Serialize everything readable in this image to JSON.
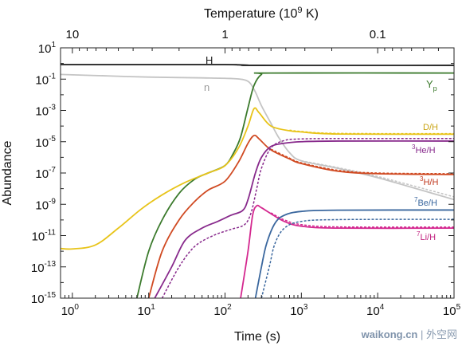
{
  "chart_data": {
    "type": "line",
    "xlabel": "Time (s)",
    "ylabel": "Abundance",
    "top_axis_title": "Temperature  (10",
    "top_axis_title_exp": "9",
    "top_axis_title_end": " K)",
    "xscale": "log",
    "yscale": "log",
    "xlim": [
      0.7,
      100000
    ],
    "ylim": [
      1e-15,
      10
    ],
    "x_ticks": [
      {
        "value": 1,
        "base": "10",
        "exp": "0"
      },
      {
        "value": 10,
        "base": "10",
        "exp": "1"
      },
      {
        "value": 100,
        "base": "10",
        "exp": "2"
      },
      {
        "value": 1000,
        "base": "10",
        "exp": "3"
      },
      {
        "value": 10000,
        "base": "10",
        "exp": "4"
      },
      {
        "value": 100000,
        "base": "10",
        "exp": "5"
      }
    ],
    "y_ticks": [
      {
        "value": 10,
        "base": "10",
        "exp": "1"
      },
      {
        "value": 0.1,
        "base": "10",
        "exp": "-1"
      },
      {
        "value": 0.001,
        "base": "10",
        "exp": "-3"
      },
      {
        "value": 1e-05,
        "base": "10",
        "exp": "-5"
      },
      {
        "value": 1e-07,
        "base": "10",
        "exp": "-7"
      },
      {
        "value": 1e-09,
        "base": "10",
        "exp": "-9"
      },
      {
        "value": 1e-11,
        "base": "10",
        "exp": "-11"
      },
      {
        "value": 1e-13,
        "base": "10",
        "exp": "-13"
      },
      {
        "value": 1e-15,
        "base": "10",
        "exp": "-15"
      }
    ],
    "top_ticks": [
      {
        "label": "10",
        "time": 1
      },
      {
        "label": "1",
        "time": 100
      },
      {
        "label": "0.1",
        "time": 10000
      }
    ],
    "series": [
      {
        "name": "H",
        "color": "#1a1a1a",
        "dashed": false,
        "points": [
          [
            0.7,
            0.85
          ],
          [
            10,
            0.85
          ],
          [
            100,
            0.85
          ],
          [
            150,
            0.82
          ],
          [
            200,
            0.78
          ],
          [
            280,
            0.76
          ],
          [
            100000,
            0.76
          ]
        ]
      },
      {
        "name": "n",
        "color": "#c4c4c4",
        "dashed": false,
        "points": [
          [
            0.7,
            0.2
          ],
          [
            3,
            0.16
          ],
          [
            10,
            0.135
          ],
          [
            50,
            0.12
          ],
          [
            120,
            0.11
          ],
          [
            170,
            0.095
          ],
          [
            210,
            0.06
          ],
          [
            250,
            0.015
          ],
          [
            300,
            0.002
          ],
          [
            400,
            0.00015
          ],
          [
            500,
            2e-05
          ],
          [
            700,
            2e-06
          ],
          [
            1000,
            6e-07
          ],
          [
            3000,
            2e-07
          ],
          [
            10000,
            5e-08
          ],
          [
            100000,
            2e-09
          ]
        ]
      },
      {
        "name": "n (alt)",
        "color": "#c4c4c4",
        "dashed": true,
        "points": [
          [
            1000,
            6e-07
          ],
          [
            3000,
            2.2e-07
          ],
          [
            10000,
            6e-08
          ],
          [
            100000,
            3e-09
          ]
        ]
      },
      {
        "name": "Yp",
        "color": "#3b7a2c",
        "dashed": false,
        "points": [
          [
            7,
            1e-15
          ],
          [
            10,
            1e-12
          ],
          [
            15,
            1e-10
          ],
          [
            25,
            5e-09
          ],
          [
            40,
            4e-08
          ],
          [
            60,
            1e-07
          ],
          [
            100,
            3e-07
          ],
          [
            130,
            2e-06
          ],
          [
            160,
            2e-05
          ],
          [
            200,
            0.0015
          ],
          [
            240,
            0.04
          ],
          [
            300,
            0.2
          ],
          [
            400,
            0.245
          ],
          [
            100000,
            0.245
          ]
        ]
      },
      {
        "name": "D/H",
        "color": "#e8c41a",
        "dashed": false,
        "points": [
          [
            0.7,
            1.5e-12
          ],
          [
            1,
            1.4e-12
          ],
          [
            2,
            2.5e-12
          ],
          [
            4,
            3e-11
          ],
          [
            8,
            5e-10
          ],
          [
            15,
            4e-09
          ],
          [
            30,
            2.5e-08
          ],
          [
            60,
            1e-07
          ],
          [
            100,
            3e-07
          ],
          [
            150,
            4e-06
          ],
          [
            200,
            0.0001
          ],
          [
            240,
            0.0013
          ],
          [
            280,
            0.0007
          ],
          [
            400,
            0.0001
          ],
          [
            700,
            5e-05
          ],
          [
            1000,
            4.2e-05
          ],
          [
            3000,
            3.1e-05
          ],
          [
            100000,
            3e-05
          ]
        ]
      },
      {
        "name": "D/H (alt)",
        "color": "#e8c41a",
        "dashed": true,
        "points": [
          [
            700,
            5.5e-05
          ],
          [
            1000,
            4.5e-05
          ],
          [
            3000,
            3.4e-05
          ],
          [
            100000,
            3.3e-05
          ]
        ]
      },
      {
        "name": "3H/H",
        "color": "#d04a22",
        "dashed": false,
        "points": [
          [
            10,
            1e-15
          ],
          [
            15,
            1e-12
          ],
          [
            25,
            1e-10
          ],
          [
            40,
            1.5e-09
          ],
          [
            60,
            8e-09
          ],
          [
            100,
            3e-08
          ],
          [
            150,
            5e-07
          ],
          [
            200,
            8e-06
          ],
          [
            240,
            2.5e-05
          ],
          [
            280,
            1.5e-05
          ],
          [
            400,
            3e-06
          ],
          [
            700,
            8e-07
          ],
          [
            1000,
            4e-07
          ],
          [
            3000,
            1.3e-07
          ],
          [
            10000,
            9e-08
          ],
          [
            100000,
            8e-08
          ]
        ]
      },
      {
        "name": "3H/H (alt)",
        "color": "#d04a22",
        "dashed": true,
        "points": [
          [
            400,
            3.3e-06
          ],
          [
            700,
            9e-07
          ],
          [
            1000,
            4.5e-07
          ],
          [
            3000,
            1.5e-07
          ],
          [
            10000,
            1e-07
          ],
          [
            100000,
            9e-08
          ]
        ]
      },
      {
        "name": "3He/H",
        "color": "#882a8c",
        "dashed": false,
        "points": [
          [
            12,
            1e-15
          ],
          [
            20,
            1e-13
          ],
          [
            30,
            5e-12
          ],
          [
            50,
            3e-11
          ],
          [
            80,
            8e-11
          ],
          [
            120,
            2e-10
          ],
          [
            170,
            4e-10
          ],
          [
            200,
            2e-09
          ],
          [
            250,
            1e-07
          ],
          [
            300,
            1e-06
          ],
          [
            400,
            5e-06
          ],
          [
            600,
            8e-06
          ],
          [
            1000,
            1e-05
          ],
          [
            3000,
            1.1e-05
          ],
          [
            100000,
            1.1e-05
          ]
        ]
      },
      {
        "name": "3He/H (alt)",
        "color": "#882a8c",
        "dashed": true,
        "points": [
          [
            15,
            1e-15
          ],
          [
            25,
            1e-13
          ],
          [
            40,
            2e-12
          ],
          [
            70,
            1e-11
          ],
          [
            120,
            2.5e-11
          ],
          [
            180,
            5e-11
          ],
          [
            220,
            3e-10
          ],
          [
            260,
            1e-08
          ],
          [
            300,
            2e-07
          ],
          [
            400,
            4e-06
          ],
          [
            600,
            1.2e-05
          ],
          [
            1000,
            1.5e-05
          ],
          [
            3000,
            1.6e-05
          ],
          [
            100000,
            1.6e-05
          ]
        ]
      },
      {
        "name": "7Li/H",
        "color": "#d4288f",
        "dashed": false,
        "points": [
          [
            160,
            1e-15
          ],
          [
            200,
            1e-12
          ],
          [
            230,
            2e-10
          ],
          [
            260,
            8e-10
          ],
          [
            300,
            6e-10
          ],
          [
            400,
            2.5e-10
          ],
          [
            600,
            8e-11
          ],
          [
            1000,
            4e-11
          ],
          [
            3000,
            3e-11
          ],
          [
            100000,
            3e-11
          ]
        ]
      },
      {
        "name": "7Li/H (alt)",
        "color": "#d4288f",
        "dashed": true,
        "points": [
          [
            400,
            2.8e-10
          ],
          [
            600,
            1e-10
          ],
          [
            1000,
            5e-11
          ],
          [
            3000,
            3.6e-11
          ],
          [
            100000,
            3.5e-11
          ]
        ]
      },
      {
        "name": "7Be/H",
        "color": "#3a679e",
        "dashed": false,
        "points": [
          [
            250,
            1e-15
          ],
          [
            300,
            1e-13
          ],
          [
            350,
            3e-12
          ],
          [
            450,
            6e-11
          ],
          [
            600,
            2e-10
          ],
          [
            1000,
            3.5e-10
          ],
          [
            3000,
            4.2e-10
          ],
          [
            100000,
            4.3e-10
          ]
        ]
      },
      {
        "name": "7Be/H (alt)",
        "color": "#3a679e",
        "dashed": true,
        "points": [
          [
            300,
            1e-15
          ],
          [
            380,
            1e-13
          ],
          [
            450,
            3e-12
          ],
          [
            600,
            3e-11
          ],
          [
            1000,
            8e-11
          ],
          [
            3000,
            1.05e-10
          ],
          [
            100000,
            1.1e-10
          ]
        ]
      }
    ],
    "labels": [
      {
        "key": "H",
        "text": "H",
        "color": "#1a1a1a"
      },
      {
        "key": "n",
        "text": "n",
        "color": "#9a9a9a"
      },
      {
        "key": "Yp",
        "base": "Y",
        "sub": "p",
        "color": "#3b7a2c"
      },
      {
        "key": "DH",
        "text": "D/H",
        "color": "#c9a414"
      },
      {
        "key": "He3",
        "sup": "3",
        "base": "He/H",
        "color": "#882a8c"
      },
      {
        "key": "H3",
        "sup": "3",
        "base": "H/H",
        "color": "#c0381e"
      },
      {
        "key": "Be7",
        "sup": "7",
        "base": "Be/H",
        "color": "#3a679e"
      },
      {
        "key": "Li7",
        "sup": "7",
        "base": "Li/H",
        "color": "#c0227f"
      }
    ]
  },
  "watermark": {
    "brand": "waikong.cn",
    "sep": " | ",
    "text": "外空网"
  }
}
